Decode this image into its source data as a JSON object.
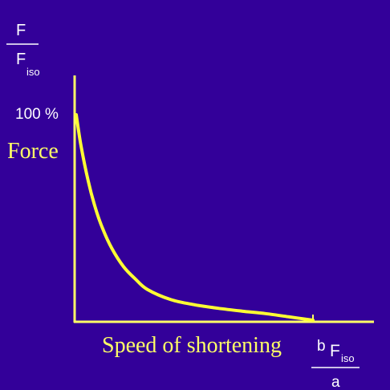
{
  "chart_data": {
    "type": "line",
    "y_fraction": {
      "numerator": "F",
      "denominator": "F",
      "denominator_subscript": "iso"
    },
    "y_tick_label": "100 %",
    "ylabel": "Force",
    "xlabel": "Speed of shortening",
    "x_max_label": {
      "numerator_prefix": "b",
      "numerator": "F",
      "numerator_subscript": "iso",
      "denominator": "a"
    },
    "xlim": [
      0,
      1
    ],
    "ylim": [
      0,
      1
    ],
    "series": [
      {
        "color": "#ffff33",
        "x": [
          0,
          0.02,
          0.05,
          0.08,
          0.11,
          0.15,
          0.2,
          0.25,
          0.3,
          0.4,
          0.5,
          0.6,
          0.7,
          0.8,
          0.9,
          1.0
        ],
        "y": [
          1.0,
          0.85,
          0.68,
          0.55,
          0.45,
          0.35,
          0.26,
          0.2,
          0.15,
          0.1,
          0.075,
          0.058,
          0.044,
          0.032,
          0.016,
          0.0
        ]
      }
    ]
  }
}
